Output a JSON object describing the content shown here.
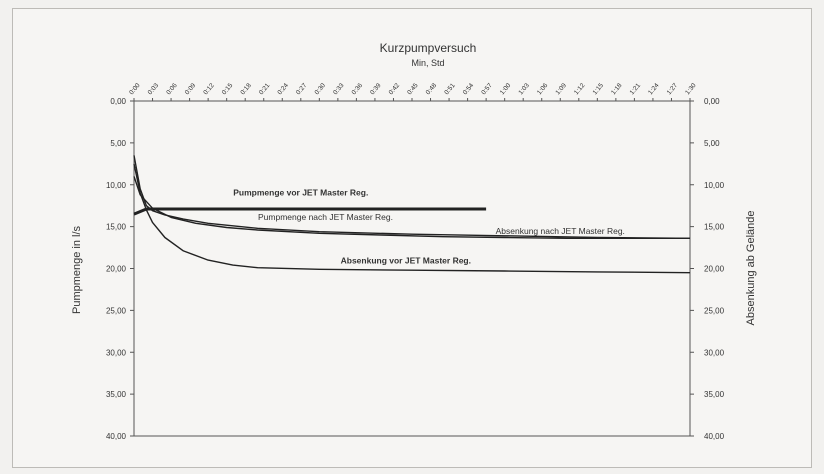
{
  "chart_data": {
    "type": "line",
    "title": "Kurzpumpversuch",
    "subtitle": "Min, Std",
    "ylabel_left": "Pumpmenge in l/s",
    "ylabel_right": "Absenkung ab Gelände",
    "ylim": [
      0,
      40
    ],
    "y_inverted": true,
    "y_ticks": [
      "0,00",
      "5,00",
      "10,00",
      "15,00",
      "20,00",
      "25,00",
      "30,00",
      "35,00",
      "40,00"
    ],
    "x_ticks": [
      "0:00",
      "0:03",
      "0:06",
      "0:09",
      "0:12",
      "0:15",
      "0:18",
      "0:21",
      "0:24",
      "0:27",
      "0:30",
      "0:33",
      "0:36",
      "0:39",
      "0:42",
      "0:45",
      "0:48",
      "0:51",
      "0:54",
      "0:57",
      "1:00",
      "1:03",
      "1:06",
      "1:09",
      "1:12",
      "1:15",
      "1:18",
      "1:21",
      "1:24",
      "1:27",
      "1:30"
    ],
    "xlim_min": [
      0,
      90
    ],
    "grid": false,
    "series": [
      {
        "name": "Pumpmenge vor JET Master Reg.",
        "x_min": [
          0,
          2,
          57
        ],
        "y": [
          13.5,
          12.9,
          12.9
        ],
        "bold": true
      },
      {
        "name": "Pumpmenge nach JET Master Reg.",
        "x_min": [
          0,
          1,
          3,
          6,
          10,
          15,
          20,
          30,
          40,
          50,
          60,
          70,
          80,
          90
        ],
        "y": [
          9.0,
          11.2,
          12.8,
          13.9,
          14.6,
          15.1,
          15.4,
          15.8,
          16.0,
          16.2,
          16.3,
          16.4,
          16.4,
          16.4
        ]
      },
      {
        "name": "Absenkung nach JET Master Reg.",
        "x_min": [
          0,
          1,
          2,
          3,
          5,
          8,
          12,
          20,
          30,
          45,
          60,
          75,
          90
        ],
        "y": [
          6.5,
          10.5,
          12.5,
          13.1,
          13.6,
          14.1,
          14.6,
          15.2,
          15.6,
          15.9,
          16.1,
          16.3,
          16.4
        ]
      },
      {
        "name": "Absenkung vor JET Master Reg.",
        "x_min": [
          0,
          1,
          2,
          3,
          5,
          8,
          12,
          16,
          20,
          30,
          45,
          60,
          75,
          90
        ],
        "y": [
          7.5,
          11.0,
          13.0,
          14.5,
          16.3,
          17.9,
          19.0,
          19.6,
          19.9,
          20.1,
          20.2,
          20.3,
          20.4,
          20.5
        ],
        "bold_label": true
      }
    ],
    "annotations": [
      {
        "text": "Pumpmenge vor JET Master Reg.",
        "x_min": 27,
        "y": 11.3,
        "bold": true
      },
      {
        "text": "Pumpmenge nach JET Master Reg.",
        "x_min": 31,
        "y": 14.2,
        "bold": false
      },
      {
        "text": "Absenkung nach JET Master Reg.",
        "x_min": 69,
        "y": 15.9,
        "bold": false
      },
      {
        "text": "Absenkung vor JET Master Reg.",
        "x_min": 44,
        "y": 19.4,
        "bold": true
      }
    ]
  }
}
